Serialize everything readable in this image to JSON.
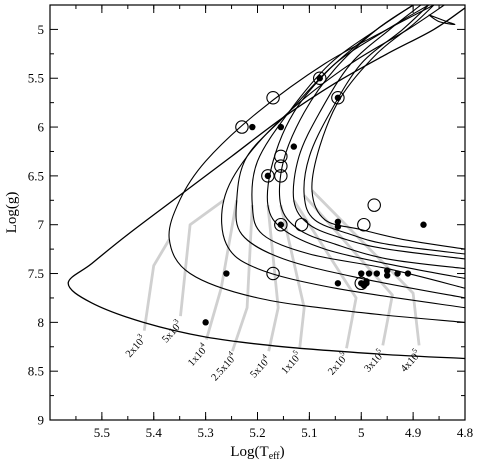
{
  "chart_data": {
    "type": "scatter",
    "xlabel": "Log(T",
    "xlabel_sub": "eff",
    "xlabel_close": ")",
    "ylabel": "Log(g)",
    "xlim": [
      5.6,
      4.8
    ],
    "ylim": [
      4.75,
      9.0
    ],
    "x_reversed": true,
    "y_inverted": true,
    "x_ticks": [
      5.5,
      5.4,
      5.3,
      5.2,
      5.1,
      5,
      4.9,
      4.8
    ],
    "x_tick_labels": [
      "5.5",
      "5.4",
      "5.3",
      "5.2",
      "5.1",
      "5",
      "4.9",
      "4.8"
    ],
    "y_ticks": [
      5,
      5.5,
      6,
      6.5,
      7,
      7.5,
      8,
      8.5,
      9
    ],
    "y_tick_labels": [
      "5",
      "5.5",
      "6",
      "6.5",
      "7",
      "7.5",
      "8",
      "8.5",
      "9"
    ],
    "grid": false,
    "curve_color": "#000000",
    "leader_color": "#d0d0d0",
    "track": [
      [
        4.8,
        4.78
      ],
      [
        4.86,
        5.0
      ],
      [
        4.95,
        5.25
      ],
      [
        5.05,
        5.55
      ],
      [
        5.15,
        5.9
      ],
      [
        5.25,
        6.3
      ],
      [
        5.35,
        6.7
      ],
      [
        5.45,
        7.1
      ],
      [
        5.52,
        7.4
      ],
      [
        5.565,
        7.6
      ],
      [
        5.52,
        7.8
      ],
      [
        5.42,
        8.0
      ],
      [
        5.3,
        8.15
      ],
      [
        5.15,
        8.25
      ],
      [
        4.95,
        8.33
      ],
      [
        4.8,
        8.37
      ]
    ],
    "isochrones": [
      {
        "label": "2x10",
        "exp": "3",
        "label_pos": [
          5.43,
          8.27
        ],
        "anchor": [
          5.4,
          7.42
        ],
        "points": [
          [
            4.86,
            4.75
          ],
          [
            4.95,
            5.0
          ],
          [
            5.07,
            5.35
          ],
          [
            5.2,
            5.85
          ],
          [
            5.3,
            6.35
          ],
          [
            5.35,
            6.75
          ],
          [
            5.37,
            7.15
          ],
          [
            5.33,
            7.5
          ],
          [
            5.2,
            7.75
          ],
          [
            5.0,
            7.9
          ],
          [
            4.8,
            8.0
          ]
        ]
      },
      {
        "label": "5x10",
        "exp": "3",
        "label_pos": [
          5.36,
          8.12
        ],
        "anchor": [
          5.33,
          7.0
        ],
        "points": [
          [
            4.84,
            4.75
          ],
          [
            4.91,
            5.0
          ],
          [
            5.02,
            5.35
          ],
          [
            5.13,
            5.8
          ],
          [
            5.22,
            6.3
          ],
          [
            5.265,
            6.75
          ],
          [
            5.26,
            7.2
          ],
          [
            5.2,
            7.45
          ],
          [
            5.05,
            7.65
          ],
          [
            4.8,
            7.85
          ]
        ]
      },
      {
        "label": "1x10",
        "exp": "4",
        "label_pos": [
          5.31,
          8.36
        ],
        "anchor": [
          5.27,
          7.65
        ],
        "points": [
          [
            4.87,
            4.75
          ],
          [
            4.95,
            5.0
          ],
          [
            5.05,
            5.35
          ],
          [
            5.14,
            5.85
          ],
          [
            5.22,
            6.3
          ],
          [
            5.24,
            6.75
          ],
          [
            5.23,
            7.1
          ],
          [
            5.15,
            7.35
          ],
          [
            5.0,
            7.55
          ],
          [
            4.8,
            7.75
          ]
        ]
      },
      {
        "label": "2.5x10",
        "exp": "4",
        "label_pos": [
          5.26,
          8.48
        ],
        "anchor": [
          5.22,
          7.85
        ],
        "points": [
          [
            4.9,
            4.75
          ],
          [
            4.97,
            5.0
          ],
          [
            5.06,
            5.35
          ],
          [
            5.14,
            5.85
          ],
          [
            5.2,
            6.35
          ],
          [
            5.21,
            6.8
          ],
          [
            5.19,
            7.1
          ],
          [
            5.1,
            7.3
          ],
          [
            4.95,
            7.45
          ],
          [
            4.8,
            7.65
          ]
        ]
      },
      {
        "label": "5x10",
        "exp": "4",
        "label_pos": [
          5.19,
          8.48
        ],
        "anchor": [
          5.16,
          7.85
        ],
        "points": [
          [
            4.9,
            4.75
          ],
          [
            4.97,
            5.0
          ],
          [
            5.06,
            5.4
          ],
          [
            5.13,
            5.85
          ],
          [
            5.17,
            6.35
          ],
          [
            5.18,
            6.8
          ],
          [
            5.15,
            7.05
          ],
          [
            5.07,
            7.25
          ],
          [
            4.95,
            7.4
          ],
          [
            4.8,
            7.55
          ]
        ]
      },
      {
        "label": "1x10",
        "exp": "5",
        "label_pos": [
          5.13,
          8.44
        ],
        "anchor": [
          5.11,
          7.85
        ],
        "points": [
          [
            4.9,
            4.75
          ],
          [
            4.97,
            5.0
          ],
          [
            5.05,
            5.4
          ],
          [
            5.11,
            5.85
          ],
          [
            5.15,
            6.35
          ],
          [
            5.155,
            6.8
          ],
          [
            5.12,
            7.05
          ],
          [
            5.05,
            7.2
          ],
          [
            4.95,
            7.35
          ],
          [
            4.8,
            7.45
          ]
        ]
      },
      {
        "label": "2x10",
        "exp": "5",
        "label_pos": [
          5.04,
          8.45
        ],
        "anchor": [
          5.01,
          7.75
        ],
        "points": [
          [
            4.885,
            4.75
          ],
          [
            4.945,
            5.0
          ],
          [
            5.02,
            5.35
          ],
          [
            5.08,
            5.85
          ],
          [
            5.12,
            6.3
          ],
          [
            5.13,
            6.75
          ],
          [
            5.1,
            7.0
          ],
          [
            5.03,
            7.15
          ],
          [
            4.95,
            7.25
          ],
          [
            4.8,
            7.35
          ]
        ]
      },
      {
        "label": "3x10",
        "exp": "5",
        "label_pos": [
          4.97,
          8.42
        ],
        "anchor": [
          4.94,
          7.72
        ],
        "points": [
          [
            4.87,
            4.75
          ],
          [
            4.92,
            5.0
          ],
          [
            5.0,
            5.35
          ],
          [
            5.06,
            5.85
          ],
          [
            5.1,
            6.3
          ],
          [
            5.11,
            6.7
          ],
          [
            5.09,
            6.95
          ],
          [
            5.02,
            7.1
          ],
          [
            4.95,
            7.2
          ],
          [
            4.8,
            7.3
          ]
        ]
      },
      {
        "label": "4x10",
        "exp": "5",
        "label_pos": [
          4.9,
          8.42
        ],
        "anchor": [
          4.9,
          7.7
        ],
        "points": [
          [
            4.86,
            4.75
          ],
          [
            4.9,
            4.95
          ],
          [
            4.97,
            5.25
          ],
          [
            5.04,
            5.7
          ],
          [
            5.08,
            6.2
          ],
          [
            5.095,
            6.65
          ],
          [
            5.07,
            6.95
          ],
          [
            5.0,
            7.05
          ],
          [
            4.92,
            7.15
          ],
          [
            4.8,
            7.25
          ]
        ]
      }
    ],
    "loop": {
      "points": [
        [
          4.87,
          4.85
        ],
        [
          4.835,
          4.92
        ],
        [
          4.82,
          4.95
        ],
        [
          4.85,
          4.92
        ],
        [
          4.87,
          4.85
        ]
      ]
    },
    "series": [
      {
        "marker": "filled-circle",
        "points": [
          [
            5.21,
            6.0
          ],
          [
            5.155,
            6.0
          ],
          [
            5.13,
            6.2
          ],
          [
            5.18,
            6.5
          ],
          [
            5.155,
            7.0
          ],
          [
            5.045,
            6.97
          ],
          [
            5.045,
            7.02
          ],
          [
            4.88,
            7.0
          ],
          [
            5.26,
            7.5
          ],
          [
            5.3,
            8.0
          ],
          [
            5.0,
            7.5
          ],
          [
            4.985,
            7.5
          ],
          [
            4.97,
            7.5
          ],
          [
            4.95,
            7.47
          ],
          [
            4.95,
            7.52
          ],
          [
            4.93,
            7.5
          ],
          [
            4.91,
            7.5
          ],
          [
            5.045,
            7.6
          ],
          [
            5.0,
            7.6
          ],
          [
            4.995,
            7.62
          ],
          [
            4.99,
            7.58
          ],
          [
            4.99,
            7.6
          ],
          [
            5.08,
            5.5
          ],
          [
            5.045,
            5.7
          ]
        ]
      },
      {
        "marker": "open-circle",
        "points": [
          [
            5.17,
            5.7
          ],
          [
            5.23,
            6.0
          ],
          [
            5.155,
            6.3
          ],
          [
            5.155,
            6.4
          ],
          [
            5.155,
            6.5
          ],
          [
            5.18,
            6.5
          ],
          [
            5.155,
            7.0
          ],
          [
            5.115,
            7.0
          ],
          [
            4.995,
            7.0
          ],
          [
            4.975,
            6.8
          ],
          [
            5.17,
            7.5
          ],
          [
            5.08,
            5.5
          ],
          [
            5.045,
            5.7
          ],
          [
            5.0,
            7.6
          ]
        ]
      }
    ]
  }
}
